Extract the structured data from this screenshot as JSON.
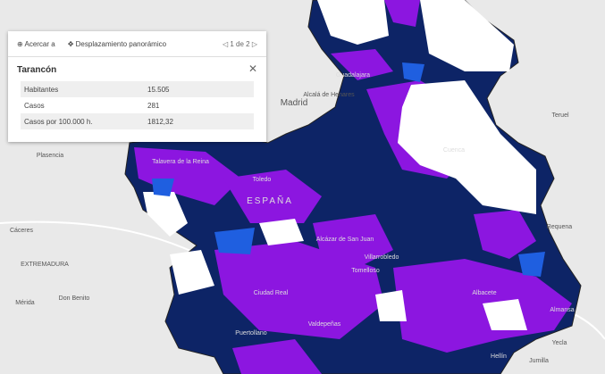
{
  "popup": {
    "toolbar": {
      "zoom": "Acercar a",
      "pan": "Desplazamiento panorámico",
      "pager": "1 de 2"
    },
    "title": "Tarancón",
    "table": {
      "rows": [
        [
          "Habitantes",
          "15.505"
        ],
        [
          "Casos",
          "281"
        ],
        [
          "Casos por 100.000 h.",
          "1812,32"
        ]
      ]
    }
  },
  "map": {
    "labels": [
      "Madrid",
      "Alcalá de Henares",
      "Teruel",
      "Plasencia",
      "Cáceres",
      "EXTREMADURA",
      "Requena",
      "Mérida",
      "Don Benito",
      "Yecla",
      "Jumilla",
      "ESPAÑA",
      "Toledo",
      "Talavera de la Reina",
      "Guadalajara",
      "Cuenca",
      "Alcázar de San Juan",
      "Tomelloso",
      "Villarrobledo",
      "Ciudad Real",
      "Valdepeñas",
      "Puertollano",
      "Albacete",
      "Almansa",
      "Hellín"
    ]
  }
}
